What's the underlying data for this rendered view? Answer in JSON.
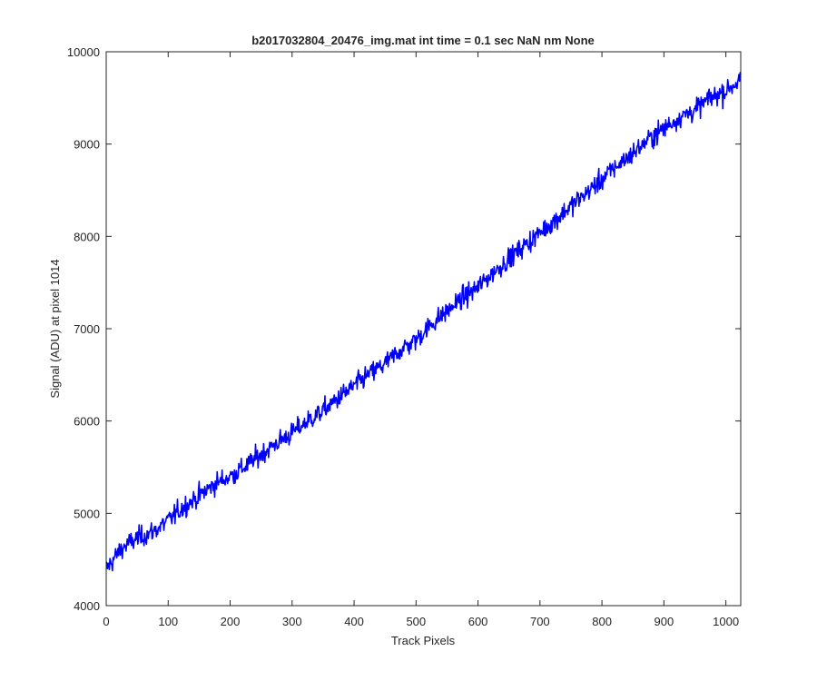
{
  "figure": {
    "background": "#ffffff"
  },
  "chart_data": {
    "type": "line",
    "title": "b2017032804_20476_img.mat int time = 0.1 sec  NaN nm None",
    "xlabel": "Track Pixels",
    "ylabel": "Signal (ADU) at pixel 1014",
    "xlim": [
      0,
      1024
    ],
    "ylim": [
      4000,
      10000
    ],
    "xticks": [
      0,
      100,
      200,
      300,
      400,
      500,
      600,
      700,
      800,
      900,
      1000
    ],
    "yticks": [
      4000,
      5000,
      6000,
      7000,
      8000,
      9000,
      10000
    ],
    "xtick_labels": [
      "0",
      "100",
      "200",
      "300",
      "400",
      "500",
      "600",
      "700",
      "800",
      "900",
      "1000"
    ],
    "ytick_labels": [
      "4000",
      "5000",
      "6000",
      "7000",
      "8000",
      "9000",
      "10000"
    ],
    "grid": false,
    "series": [
      {
        "color": "#0000ff",
        "x": [
          0,
          25,
          50,
          75,
          100,
          125,
          150,
          175,
          200,
          225,
          250,
          275,
          300,
          325,
          350,
          375,
          400,
          425,
          450,
          475,
          500,
          525,
          550,
          575,
          600,
          625,
          650,
          675,
          700,
          725,
          750,
          775,
          800,
          825,
          850,
          875,
          900,
          925,
          950,
          975,
          1000,
          1024
        ],
        "y": [
          4400,
          4620,
          4730,
          4800,
          4920,
          5070,
          5190,
          5320,
          5400,
          5510,
          5640,
          5760,
          5870,
          6000,
          6110,
          6250,
          6380,
          6510,
          6620,
          6770,
          6880,
          7050,
          7190,
          7330,
          7450,
          7610,
          7760,
          7900,
          8040,
          8180,
          8330,
          8470,
          8620,
          8770,
          8900,
          9050,
          9170,
          9290,
          9370,
          9500,
          9580,
          9700
        ]
      }
    ]
  }
}
